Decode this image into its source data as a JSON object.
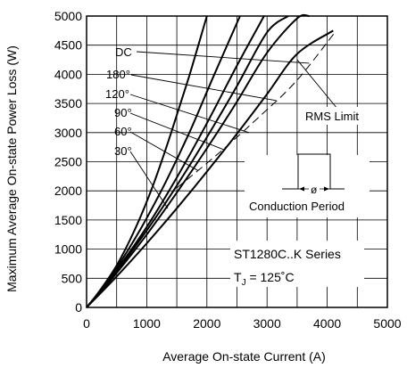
{
  "chart_data": {
    "type": "line",
    "xlabel": "Average On-state Current (A)",
    "ylabel": "Maximum Average On-state Power Loss (W)",
    "xlim": [
      0,
      5000
    ],
    "ylim": [
      0,
      5000
    ],
    "xticks": [
      0,
      1000,
      2000,
      3000,
      4000,
      5000
    ],
    "yticks": [
      0,
      500,
      1000,
      1500,
      2000,
      2500,
      3000,
      3500,
      4000,
      4500,
      5000
    ],
    "grid": true,
    "series": [
      {
        "name": "30°",
        "x": [
          0,
          200,
          500,
          800,
          1100,
          1400,
          1700,
          2000
        ],
        "y": [
          0,
          260,
          720,
          1330,
          2080,
          2980,
          3950,
          5000
        ]
      },
      {
        "name": "60°",
        "x": [
          0,
          200,
          500,
          900,
          1300,
          1700,
          2100,
          2550
        ],
        "y": [
          0,
          250,
          680,
          1350,
          2120,
          2980,
          3940,
          5000
        ]
      },
      {
        "name": "90°",
        "x": [
          0,
          200,
          500,
          1000,
          1500,
          2000,
          2500,
          2950
        ],
        "y": [
          0,
          240,
          640,
          1380,
          2230,
          3160,
          4150,
          5000
        ]
      },
      {
        "name": "120°",
        "x": [
          0,
          200,
          500,
          1000,
          1500,
          2000,
          2500,
          3000,
          3350
        ],
        "y": [
          0,
          235,
          620,
          1320,
          2090,
          2920,
          3800,
          4720,
          5000
        ]
      },
      {
        "name": "180°",
        "x": [
          0,
          200,
          500,
          1000,
          1500,
          2000,
          2500,
          3000,
          3500,
          3700
        ],
        "y": [
          0,
          225,
          590,
          1250,
          1970,
          2730,
          3530,
          4370,
          4960,
          5000
        ]
      },
      {
        "name": "DC",
        "x": [
          0,
          200,
          500,
          1000,
          1500,
          2000,
          2500,
          3000,
          3500,
          4100
        ],
        "y": [
          0,
          210,
          530,
          1100,
          1700,
          2330,
          2980,
          3660,
          4350,
          4750
        ]
      }
    ],
    "rms_limit": {
      "name": "RMS Limit",
      "x": [
        1500,
        2200,
        2900,
        3500,
        4150
      ],
      "y": [
        2050,
        2650,
        3300,
        3900,
        4750
      ]
    },
    "annotations": {
      "conduction": "Conduction Period",
      "phi": "ø",
      "series_name": "ST1280C..K Series",
      "tj_prefix": "T",
      "tj_sub": "J",
      "tj_suffix": " = 125˚C"
    }
  }
}
